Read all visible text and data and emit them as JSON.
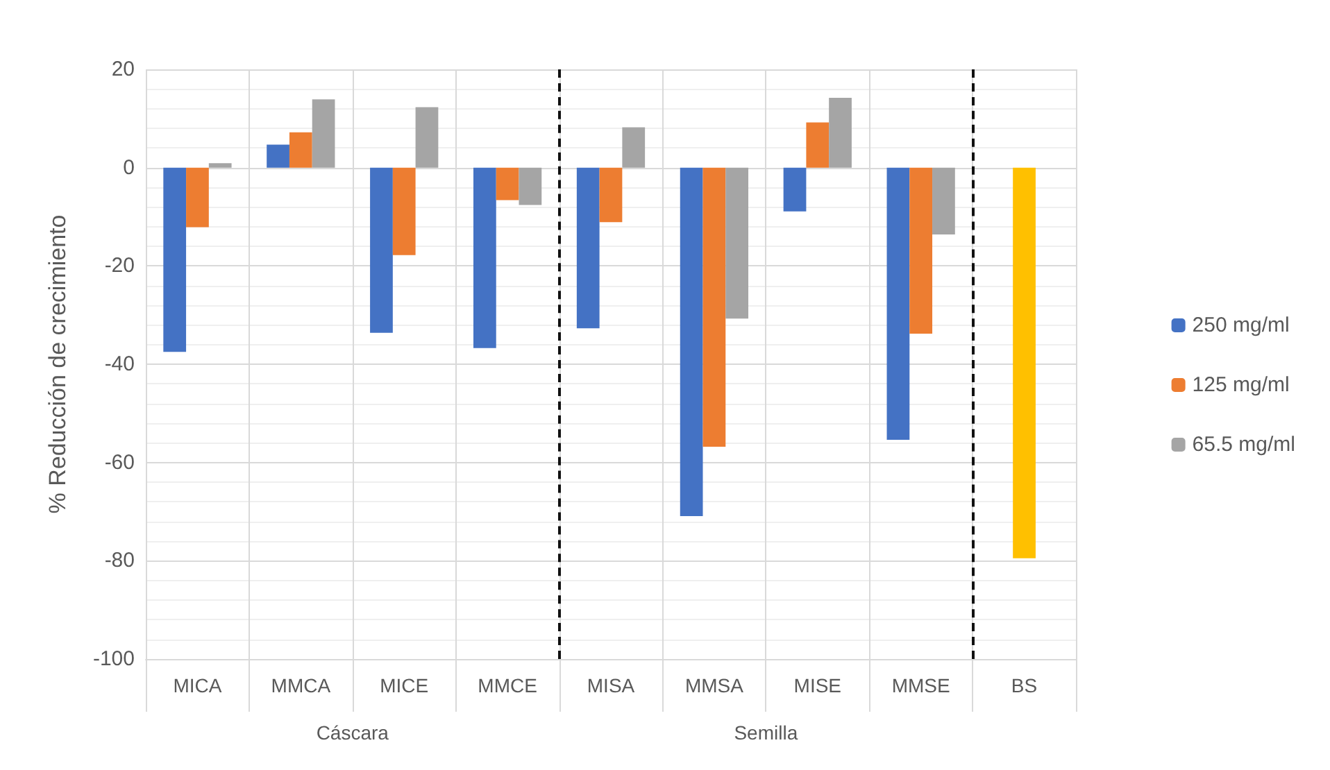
{
  "chart_data": {
    "type": "bar",
    "ylabel": "% Reducción de crecimiento",
    "categories": [
      "MICA",
      "MMCA",
      "MICE",
      "MMCE",
      "MISA",
      "MMSA",
      "MISE",
      "MMSE",
      "BS"
    ],
    "series": [
      {
        "name": "250 mg/ml",
        "color": "#4472c4",
        "values": [
          -37.5,
          4.7,
          -33.6,
          -36.7,
          -32.7,
          -70.9,
          -8.9,
          -55.4,
          null
        ]
      },
      {
        "name": "125 mg/ml",
        "color": "#ed7d31",
        "values": [
          -12.1,
          7.2,
          -17.8,
          -6.6,
          -11.1,
          -56.8,
          9.2,
          -33.8,
          null
        ]
      },
      {
        "name": "65.5 mg/ml",
        "color": "#a5a5a5",
        "values": [
          0.9,
          13.9,
          12.3,
          -7.6,
          8.2,
          -30.7,
          14.2,
          -13.6,
          null
        ]
      },
      {
        "color": "#ffc000",
        "values": [
          null,
          null,
          null,
          null,
          null,
          null,
          null,
          null,
          -79.5
        ]
      }
    ],
    "annotations": [
      "Cáscara",
      "Semilla"
    ],
    "ylim": [
      -100,
      20
    ],
    "yticks": [
      -100,
      -80,
      -60,
      -40,
      -20,
      0,
      20
    ],
    "grid": true,
    "legend": "right"
  }
}
